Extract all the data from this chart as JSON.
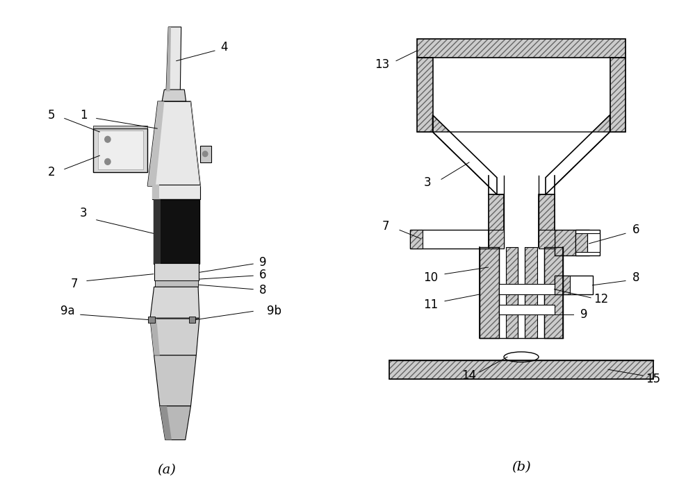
{
  "bg_color": "#ffffff",
  "line_color": "#000000",
  "hatch_lc": "#666666",
  "hatch_fc": "#cccccc",
  "label_a": "(a)",
  "label_b": "(b)",
  "title_fontsize": 14,
  "anno_fontsize": 12
}
